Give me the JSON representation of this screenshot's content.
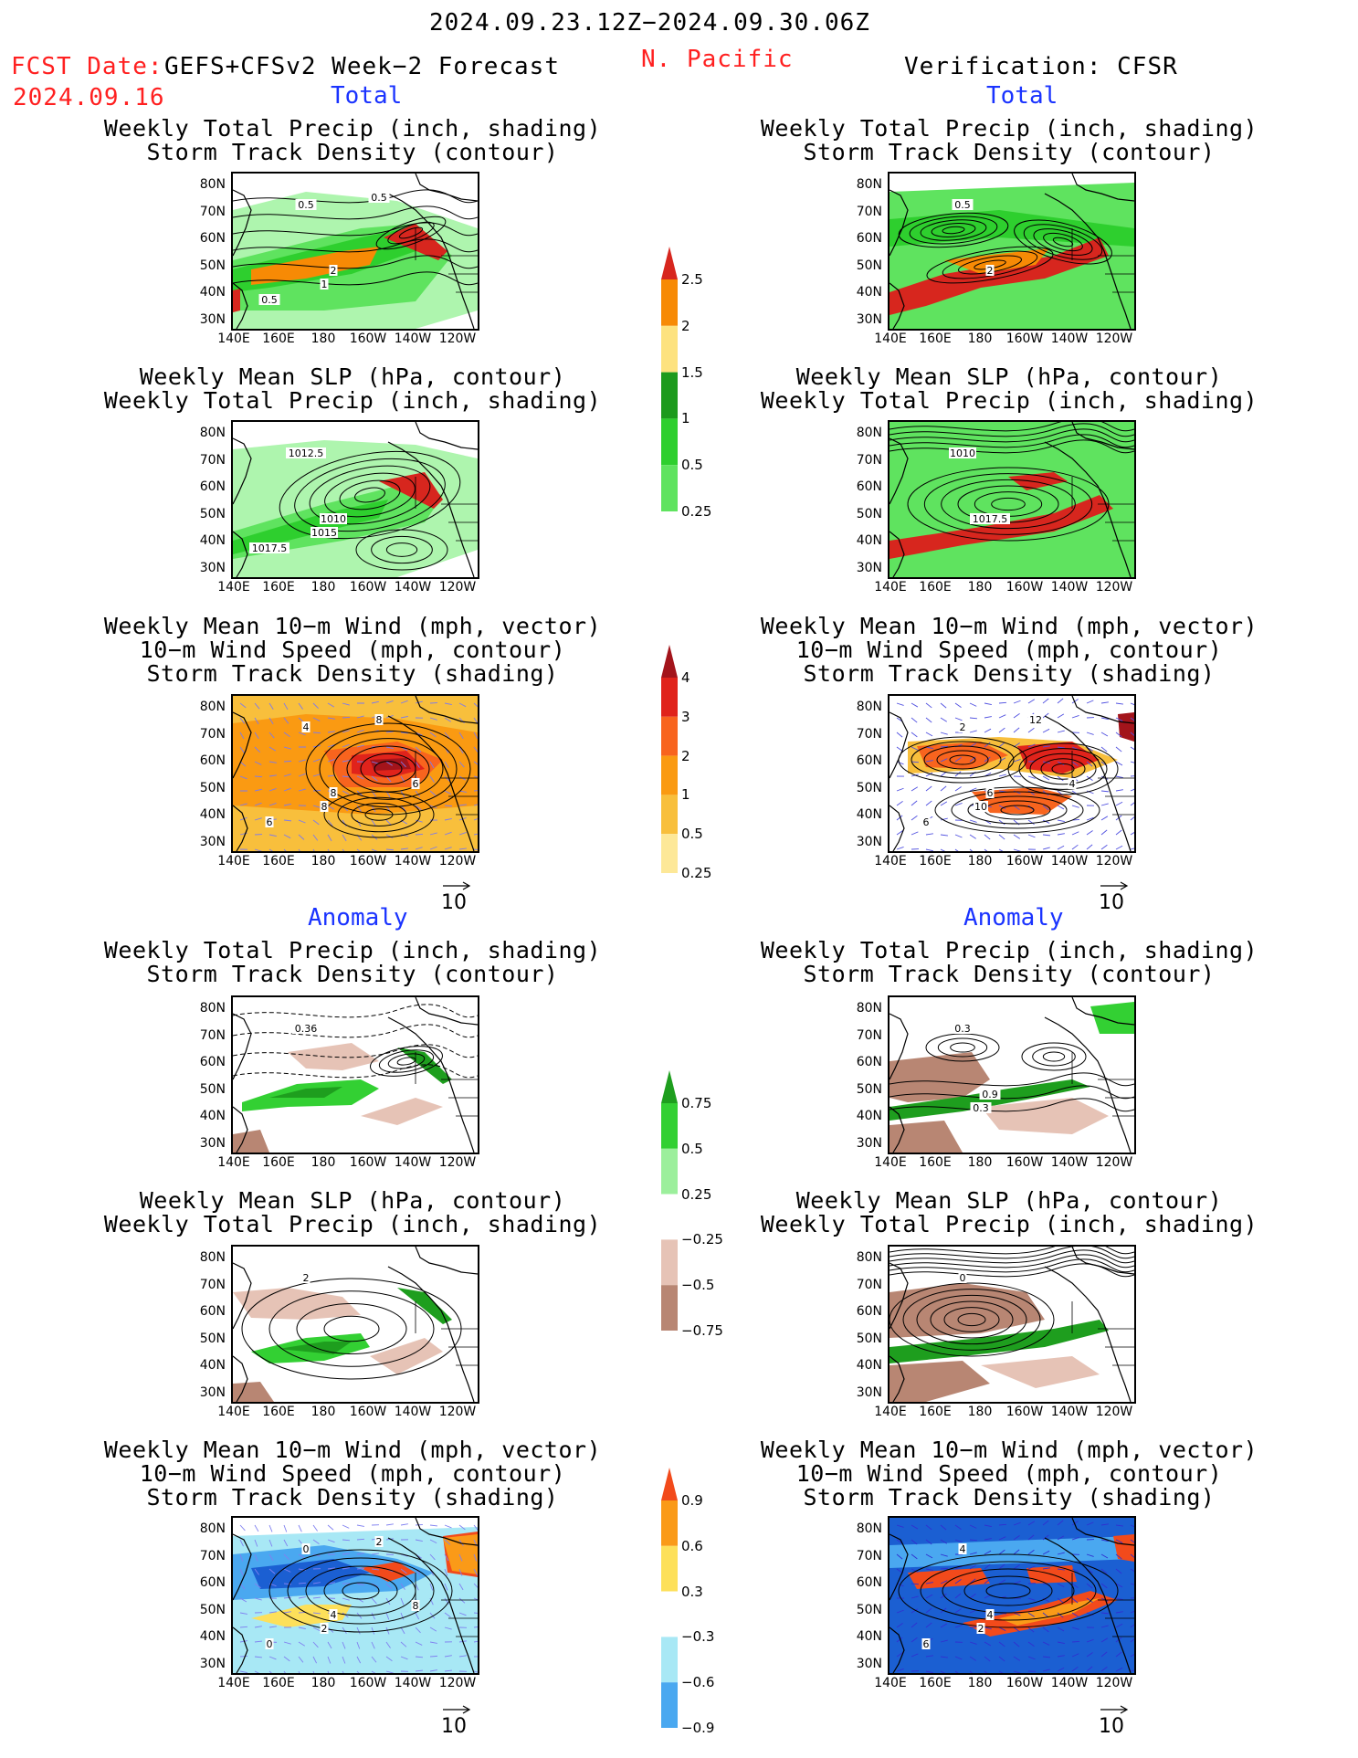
{
  "header": {
    "period": "2024.09.23.12Z−2024.09.30.06Z",
    "fcst_prefix": "FCST Date:",
    "fcst_model": "GEFS+CFSv2 Week−2 Forecast",
    "fcst_date": "2024.09.16",
    "region": "N. Pacific",
    "verification": "Verification: CFSR"
  },
  "sections": {
    "total": "Total",
    "anomaly": "Anomaly"
  },
  "titles": {
    "precip_storm": [
      "Weekly Total Precip (inch, shading)",
      "Storm Track Density (contour)"
    ],
    "slp_precip": [
      "Weekly Mean SLP (hPa, contour)",
      "Weekly Total Precip (inch, shading)"
    ],
    "wind_storm": [
      "Weekly Mean 10−m Wind (mph, vector)",
      "10−m Wind Speed (mph, contour)",
      "Storm Track Density (shading)"
    ]
  },
  "axes": {
    "y_ticks": [
      "80N",
      "70N",
      "60N",
      "50N",
      "40N",
      "30N"
    ],
    "x_ticks": [
      "140E",
      "160E",
      "180",
      "160W",
      "140W",
      "120W"
    ]
  },
  "vector_ref": "10",
  "contour_labels": {
    "p1": [
      "0.5",
      "2",
      "1",
      "0.5",
      "0.5"
    ],
    "p2": [
      "1012.5",
      "1010",
      "1015",
      "1017.5"
    ],
    "p3": [
      "4",
      "8",
      "8",
      "6",
      "8",
      "6"
    ],
    "p4": [
      "0.5",
      "2"
    ],
    "p5": [
      "1010",
      "1017.5"
    ],
    "p6": [
      "2",
      "6",
      "10",
      "6",
      "12",
      "4"
    ],
    "p7": [
      "0.36"
    ],
    "p9": [
      "2"
    ],
    "p10": [
      "0.3",
      "0.9",
      "0.3"
    ],
    "p11": [
      "0"
    ],
    "p12": [
      "0",
      "4",
      "2",
      "0",
      "2",
      "8"
    ],
    "p13": [
      "4",
      "4",
      "2",
      "6"
    ]
  },
  "colorbars": {
    "precip_total": {
      "labels": [
        "2.5",
        "2",
        "1.5",
        "1",
        "0.5",
        "0.25"
      ],
      "colors": [
        "#d7261e",
        "#f78a05",
        "#fde27f",
        "#1d9a1d",
        "#2ecf2e",
        "#5fe35f",
        "#aef5ae"
      ]
    },
    "storm_total": {
      "labels": [
        "4",
        "3",
        "2",
        "1",
        "0.5",
        "0.25"
      ],
      "colors": [
        "#a3141b",
        "#e0231b",
        "#f8641e",
        "#fa9a12",
        "#f8bf3c",
        "#fde898",
        "#fff7c8"
      ]
    },
    "precip_anom": {
      "labels": [
        "0.75",
        "0.5",
        "0.25",
        "−0.25",
        "−0.5",
        "−0.75"
      ],
      "colors": [
        "#1e9e1e",
        "#33d033",
        "#9cef9c",
        "#ffffff",
        "#e6c3b6",
        "#b88673",
        "#6b3a28"
      ]
    },
    "storm_anom": {
      "labels": [
        "0.9",
        "0.6",
        "0.3",
        "−0.3",
        "−0.6",
        "−0.9"
      ],
      "colors": [
        "#f24a1b",
        "#fa9a18",
        "#fde05a",
        "#ffffff",
        "#a8e8f5",
        "#4aa8f0",
        "#1b5fd2"
      ]
    }
  }
}
